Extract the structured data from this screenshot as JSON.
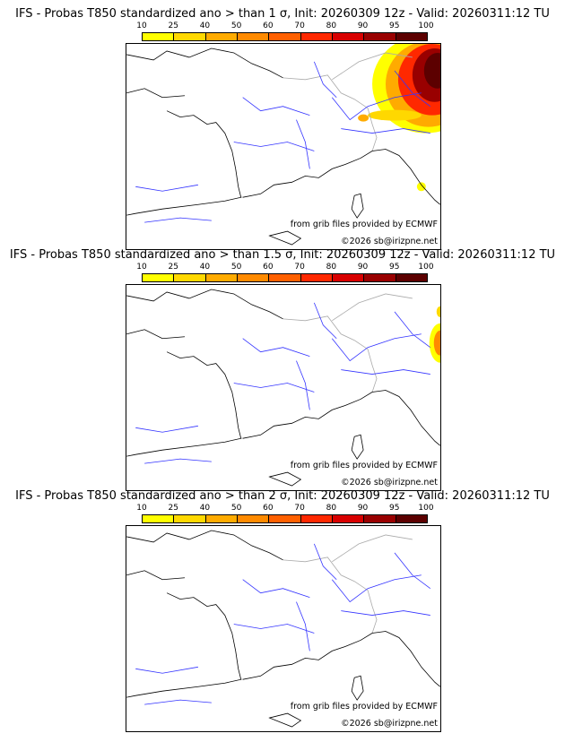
{
  "colorbar": {
    "ticks": [
      "10",
      "25",
      "40",
      "50",
      "60",
      "70",
      "80",
      "90",
      "95",
      "100"
    ],
    "colors": [
      "#ffff00",
      "#ffd800",
      "#ffab00",
      "#ff8a00",
      "#ff6000",
      "#ff2800",
      "#d80000",
      "#990000",
      "#5c0000"
    ]
  },
  "panels": [
    {
      "title": "IFS - Probas T850  standardized ano > than 1 σ, Init: 20260309 12z - Valid: 20260311:12 TU",
      "intensity": 1.0
    },
    {
      "title": "IFS - Probas T850  standardized ano > than 1.5 σ, Init: 20260309 12z - Valid: 20260311:12 TU",
      "intensity": 0.4
    },
    {
      "title": "IFS - Probas T850  standardized ano > than 2 σ, Init: 20260309 12z - Valid: 20260311:12 TU",
      "intensity": 0.0
    }
  ],
  "credits": {
    "source": "from grib files provided by ECMWF",
    "copyright": "©2026 sb@irizpne.net"
  }
}
